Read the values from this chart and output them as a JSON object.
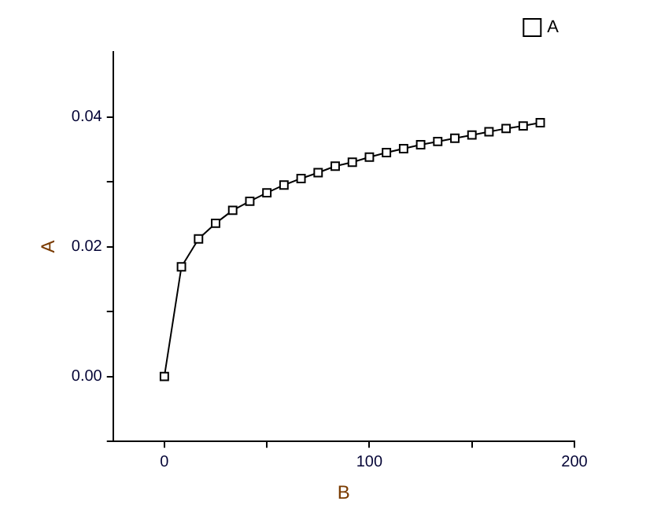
{
  "chart_data": {
    "type": "line",
    "xlabel": "B",
    "ylabel": "A",
    "x": [
      0,
      8.33,
      16.67,
      25,
      33.33,
      41.67,
      50,
      58.33,
      66.67,
      75,
      83.33,
      91.67,
      100,
      108.33,
      116.67,
      125,
      133.33,
      141.67,
      150,
      158.33,
      166.67,
      175,
      183.33
    ],
    "series": [
      {
        "name": "A",
        "color": "#000000",
        "values": [
          0,
          0.0169,
          0.0212,
          0.0236,
          0.0256,
          0.027,
          0.0283,
          0.0295,
          0.0305,
          0.0314,
          0.0324,
          0.033,
          0.0338,
          0.0345,
          0.0351,
          0.0357,
          0.0362,
          0.0367,
          0.0372,
          0.0377,
          0.0382,
          0.0386,
          0.0391
        ]
      }
    ],
    "xlim": [
      -25,
      200
    ],
    "xticks": [
      0,
      {
        "value": 50,
        "label": null
      },
      100,
      {
        "value": 150,
        "label": null
      },
      200
    ],
    "ylim": [
      -0.01,
      0.05
    ],
    "yticks": [
      {
        "value": -0.01,
        "label": null
      },
      {
        "value": 0,
        "label": "0.00"
      },
      {
        "value": 0.01,
        "label": null
      },
      {
        "value": 0.02,
        "label": "0.02"
      },
      {
        "value": 0.03,
        "label": null
      },
      {
        "value": 0.04,
        "label": "0.04"
      }
    ],
    "marker": "square",
    "line_style": "solid",
    "legend": "top right",
    "grid": false
  }
}
